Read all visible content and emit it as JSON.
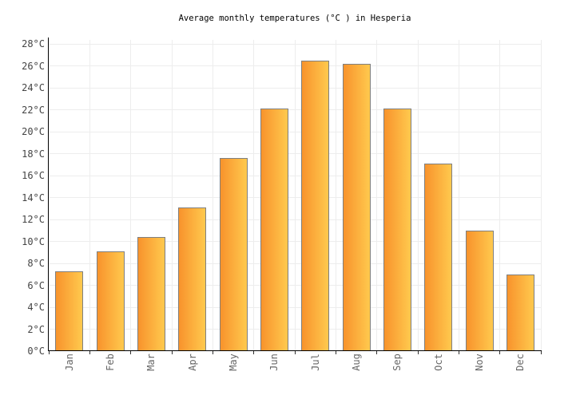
{
  "header": {
    "title": "Average monthly temperatures (°C ) in Hesperia"
  },
  "chart_data": {
    "type": "bar",
    "title": "Average monthly temperatures (°C ) in Hesperia",
    "categories": [
      "Jan",
      "Feb",
      "Mar",
      "Apr",
      "May",
      "Jun",
      "Jul",
      "Aug",
      "Sep",
      "Oct",
      "Nov",
      "Dec"
    ],
    "values": [
      7.3,
      9.1,
      10.4,
      13.1,
      17.6,
      22.1,
      26.5,
      26.2,
      22.1,
      17.1,
      11.0,
      7.0
    ],
    "unit": "°C",
    "xlabel": "",
    "ylabel": "",
    "ylim": [
      0,
      28
    ],
    "ytick_step": 2,
    "ytick_suffix": "°C",
    "grid": true,
    "legend": false,
    "colors": {
      "background": "#FFFFFF",
      "bar_gradient_left": "#F8932C",
      "bar_gradient_right": "#FFC94E",
      "bar_border": "#7F7F7F",
      "grid_line": "#EDEDED",
      "axis_line": "#000000",
      "title_text": "#000000",
      "y_tick_text": "#444444",
      "x_tick_text": "#666666",
      "x_tick_mark": "#333333"
    }
  }
}
